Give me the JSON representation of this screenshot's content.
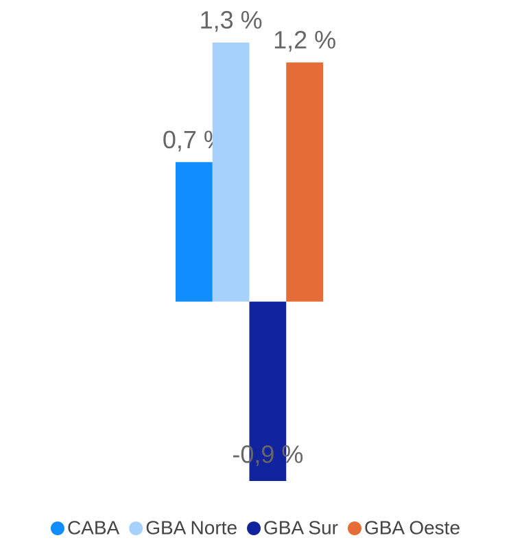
{
  "chart_data": {
    "type": "bar",
    "series": [
      {
        "name": "CABA",
        "color": "#118dff",
        "values": [
          0.7
        ],
        "value_labels": [
          "0,7 %"
        ]
      },
      {
        "name": "GBA Norte",
        "color": "#a6d1fd",
        "values": [
          1.3
        ],
        "value_labels": [
          "1,3 %"
        ]
      },
      {
        "name": "GBA Sur",
        "color": "#12239e",
        "values": [
          -0.9
        ],
        "value_labels": [
          "-0,9 %"
        ]
      },
      {
        "name": "GBA Oeste",
        "color": "#e66c37",
        "values": [
          1.2
        ],
        "value_labels": [
          "1,2 %"
        ]
      }
    ],
    "legend": "bottom"
  }
}
